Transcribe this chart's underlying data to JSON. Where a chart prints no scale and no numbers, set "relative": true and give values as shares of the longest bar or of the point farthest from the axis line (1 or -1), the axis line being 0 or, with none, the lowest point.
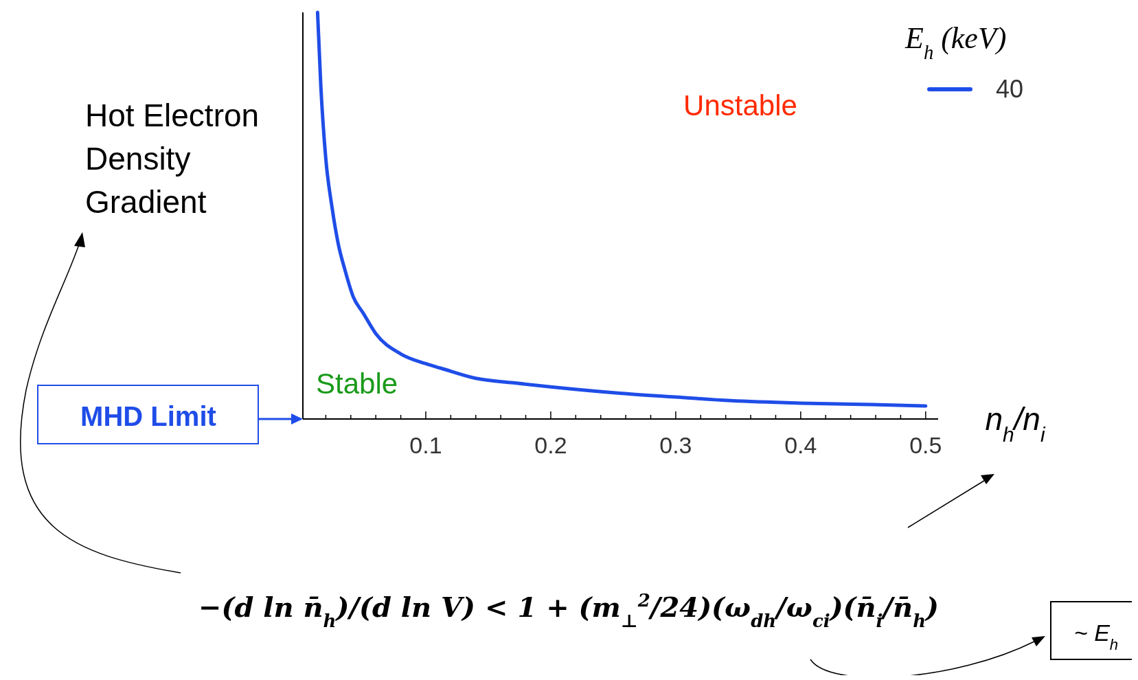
{
  "chart_data": {
    "type": "line",
    "relative": true,
    "xlabel": "n$_{h}$/n$_{i}$",
    "ylabel": "Hot Electron Density Gradient",
    "legend_title": "E$_{h}$ (keV)",
    "legend": "top right",
    "xlim": [
      0,
      0.51
    ],
    "xticks": [
      {
        "value": 0.02,
        "label": null
      },
      {
        "value": 0.04,
        "label": null
      },
      {
        "value": 0.06,
        "label": null
      },
      {
        "value": 0.08,
        "label": null
      },
      {
        "value": 0.1,
        "label": "0.1"
      },
      {
        "value": 0.12,
        "label": null
      },
      {
        "value": 0.14,
        "label": null
      },
      {
        "value": 0.16,
        "label": null
      },
      {
        "value": 0.18,
        "label": null
      },
      {
        "value": 0.2,
        "label": "0.2"
      },
      {
        "value": 0.22,
        "label": null
      },
      {
        "value": 0.24,
        "label": null
      },
      {
        "value": 0.26,
        "label": null
      },
      {
        "value": 0.28,
        "label": null
      },
      {
        "value": 0.3,
        "label": "0.3"
      },
      {
        "value": 0.32,
        "label": null
      },
      {
        "value": 0.34,
        "label": null
      },
      {
        "value": 0.36,
        "label": null
      },
      {
        "value": 0.38,
        "label": null
      },
      {
        "value": 0.4,
        "label": "0.4"
      },
      {
        "value": 0.42,
        "label": null
      },
      {
        "value": 0.44,
        "label": null
      },
      {
        "value": 0.46,
        "label": null
      },
      {
        "value": 0.48,
        "label": null
      },
      {
        "value": 0.5,
        "label": "0.5"
      }
    ],
    "x": [
      0.0134,
      0.016,
      0.02,
      0.025,
      0.03,
      0.035,
      0.042,
      0.05,
      0.06,
      0.08,
      0.1,
      0.112,
      0.14,
      0.17,
      0.2,
      0.257,
      0.3,
      0.344,
      0.4,
      0.45,
      0.5
    ],
    "series": [
      {
        "name": "40",
        "color": "#1f4de8",
        "values": [
          1,
          0.82,
          0.64,
          0.52,
          0.43,
          0.37,
          0.3,
          0.26,
          0.21,
          0.16,
          0.136,
          0.125,
          0.1,
          0.089,
          0.079,
          0.063,
          0.054,
          0.045,
          0.039,
          0.036,
          0.032
        ]
      }
    ],
    "annotations": [
      "Unstable",
      "Stable",
      "MHD Limit",
      "−(d ln n̄$_{h}$)/(d ln V) < 1 + (m$_{⊥}$$^{2}$/24)(ω$_{dh}$/ω$_{ci}$)(n̄$_{i}$/n̄$_{h}$)",
      "~ E$_{h}$"
    ]
  }
}
